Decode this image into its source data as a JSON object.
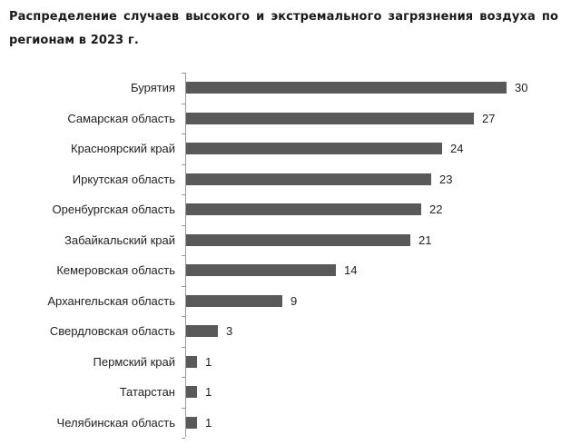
{
  "title": "Распределение случаев высокого и экстремального загрязнения воздуха по регионам в 2023 г.",
  "colors": {
    "bar": "#595959",
    "axis": "#9a9a9a",
    "text": "#222222"
  },
  "chart_data": {
    "type": "bar",
    "orientation": "horizontal",
    "title": "Распределение случаев высокого и экстремального загрязнения воздуха по регионам в 2023 г.",
    "xlabel": "",
    "ylabel": "",
    "categories": [
      "Бурятия",
      "Самарская область",
      "Красноярский край",
      "Иркутская область",
      "Оренбургская область",
      "Забайкальский край",
      "Кемеровская область",
      "Архангельская область",
      "Свердловская область",
      "Пермский край",
      "Татарстан",
      "Челябинская область"
    ],
    "values": [
      30,
      27,
      24,
      23,
      22,
      21,
      14,
      9,
      3,
      1,
      1,
      1
    ],
    "data_labels": true,
    "grid": false,
    "legend": null,
    "xlim": [
      0,
      30
    ]
  }
}
